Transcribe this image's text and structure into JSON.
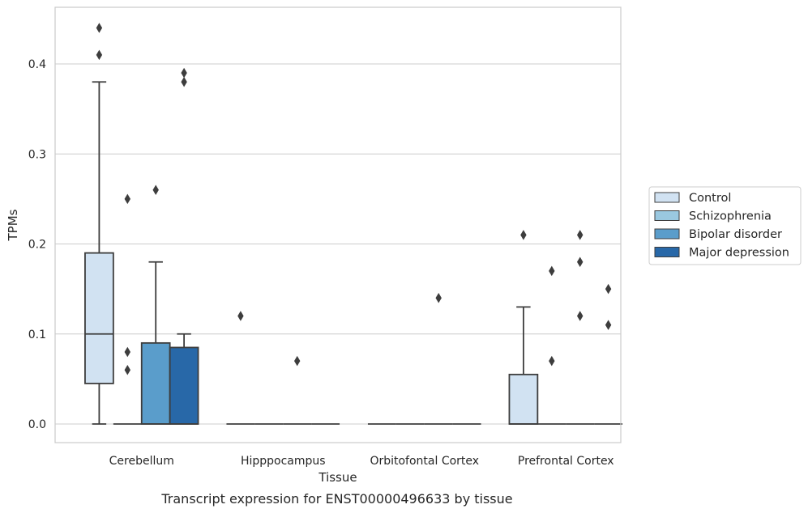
{
  "chart_data": {
    "type": "box",
    "xlabel": "Tissue",
    "ylabel": "TPMs",
    "caption": "Transcript expression for ENST00000496633 by tissue",
    "ylim": [
      -0.022,
      0.465
    ],
    "yticks": [
      "0.0",
      "0.1",
      "0.2",
      "0.3",
      "0.4"
    ],
    "grid": "horizontal",
    "legend_position": "right",
    "categories": [
      "Cerebellum",
      "Hipppocampus",
      "Orbitofontal Cortex",
      "Prefrontal Cortex"
    ],
    "series": [
      {
        "name": "Control",
        "color": "#d1e2f2",
        "boxes": [
          {
            "q1": 0.045,
            "median": 0.1,
            "q3": 0.19,
            "whisker_low": 0.0,
            "whisker_high": 0.38,
            "outliers": [
              0.41,
              0.44
            ]
          },
          {
            "q1": 0.0,
            "median": 0.0,
            "q3": 0.0,
            "whisker_low": 0.0,
            "whisker_high": 0.0,
            "outliers": [
              0.12
            ]
          },
          {
            "q1": 0.0,
            "median": 0.0,
            "q3": 0.0,
            "whisker_low": 0.0,
            "whisker_high": 0.0,
            "outliers": []
          },
          {
            "q1": 0.0,
            "median": 0.0,
            "q3": 0.055,
            "whisker_low": 0.0,
            "whisker_high": 0.13,
            "outliers": [
              0.21
            ]
          }
        ]
      },
      {
        "name": "Schizophrenia",
        "color": "#9ac8e0",
        "boxes": [
          {
            "q1": 0.0,
            "median": 0.0,
            "q3": 0.0,
            "whisker_low": 0.0,
            "whisker_high": 0.0,
            "outliers": [
              0.06,
              0.08,
              0.25
            ]
          },
          {
            "q1": 0.0,
            "median": 0.0,
            "q3": 0.0,
            "whisker_low": 0.0,
            "whisker_high": 0.0,
            "outliers": []
          },
          {
            "q1": 0.0,
            "median": 0.0,
            "q3": 0.0,
            "whisker_low": 0.0,
            "whisker_high": 0.0,
            "outliers": []
          },
          {
            "q1": 0.0,
            "median": 0.0,
            "q3": 0.0,
            "whisker_low": 0.0,
            "whisker_high": 0.0,
            "outliers": [
              0.07,
              0.17
            ]
          }
        ]
      },
      {
        "name": "Bipolar disorder",
        "color": "#5a9dcb",
        "boxes": [
          {
            "q1": 0.0,
            "median": 0.0,
            "q3": 0.09,
            "whisker_low": 0.0,
            "whisker_high": 0.18,
            "outliers": [
              0.26
            ]
          },
          {
            "q1": 0.0,
            "median": 0.0,
            "q3": 0.0,
            "whisker_low": 0.0,
            "whisker_high": 0.0,
            "outliers": [
              0.07
            ]
          },
          {
            "q1": 0.0,
            "median": 0.0,
            "q3": 0.0,
            "whisker_low": 0.0,
            "whisker_high": 0.0,
            "outliers": [
              0.14
            ]
          },
          {
            "q1": 0.0,
            "median": 0.0,
            "q3": 0.0,
            "whisker_low": 0.0,
            "whisker_high": 0.0,
            "outliers": [
              0.12,
              0.18,
              0.21
            ]
          }
        ]
      },
      {
        "name": "Major depression",
        "color": "#2868a8",
        "boxes": [
          {
            "q1": 0.0,
            "median": 0.0,
            "q3": 0.085,
            "whisker_low": 0.0,
            "whisker_high": 0.1,
            "outliers": [
              0.38,
              0.39
            ]
          },
          {
            "q1": 0.0,
            "median": 0.0,
            "q3": 0.0,
            "whisker_low": 0.0,
            "whisker_high": 0.0,
            "outliers": []
          },
          {
            "q1": 0.0,
            "median": 0.0,
            "q3": 0.0,
            "whisker_low": 0.0,
            "whisker_high": 0.0,
            "outliers": []
          },
          {
            "q1": 0.0,
            "median": 0.0,
            "q3": 0.0,
            "whisker_low": 0.0,
            "whisker_high": 0.0,
            "outliers": [
              0.11,
              0.15
            ]
          }
        ]
      }
    ]
  }
}
